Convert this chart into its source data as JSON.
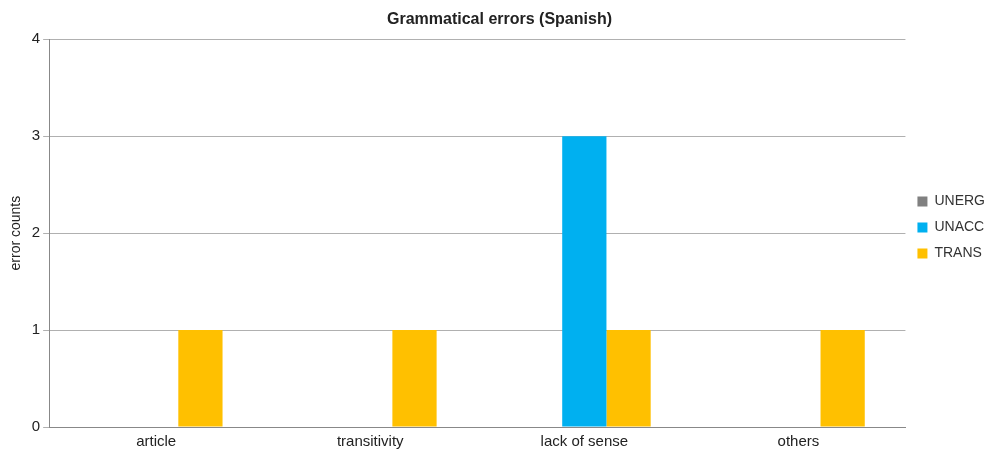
{
  "chart_data": {
    "type": "bar",
    "title": "Grammatical errors (Spanish)",
    "ylabel": "error counts",
    "categories": [
      "article",
      "transitivity",
      "lack of sense",
      "others"
    ],
    "series": [
      {
        "name": "UNERG",
        "color": "#808080",
        "values": [
          0,
          0,
          0,
          0
        ]
      },
      {
        "name": "UNACC",
        "color": "#00b0f0",
        "values": [
          0,
          0,
          3,
          0
        ]
      },
      {
        "name": "TRANS",
        "color": "#ffc000",
        "values": [
          1,
          1,
          1,
          1
        ]
      }
    ],
    "ylim": [
      0,
      4
    ],
    "yticks": [
      0,
      1,
      2,
      3,
      4
    ],
    "grid": "y",
    "legend": "right"
  }
}
